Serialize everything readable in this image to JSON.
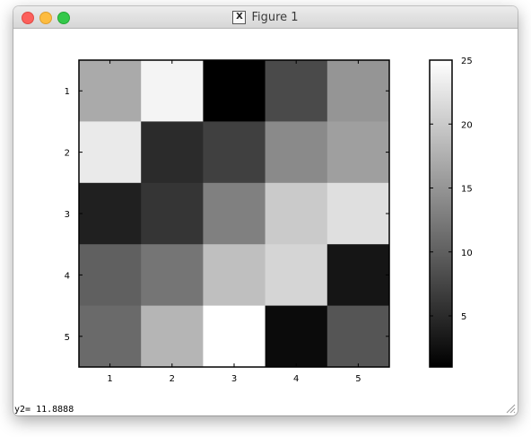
{
  "window": {
    "title": "Figure 1",
    "title_icon": "x11-icon"
  },
  "status": {
    "text": "y2= 11.8888"
  },
  "chart_data": {
    "type": "heatmap",
    "colormap": "gray",
    "x_ticks": [
      "1",
      "2",
      "3",
      "4",
      "5"
    ],
    "y_ticks": [
      "1",
      "2",
      "3",
      "4",
      "5"
    ],
    "values": [
      [
        17,
        24,
        1,
        8,
        15
      ],
      [
        23,
        5,
        7,
        14,
        16
      ],
      [
        4,
        6,
        13,
        20,
        22
      ],
      [
        10,
        12,
        19,
        21,
        3
      ],
      [
        11,
        18,
        25,
        2,
        9
      ]
    ],
    "clim": [
      1,
      25
    ],
    "colorbar": {
      "ticks": [
        5,
        10,
        15,
        20,
        25
      ],
      "labels": [
        "5",
        "10",
        "15",
        "20",
        "25"
      ]
    }
  }
}
